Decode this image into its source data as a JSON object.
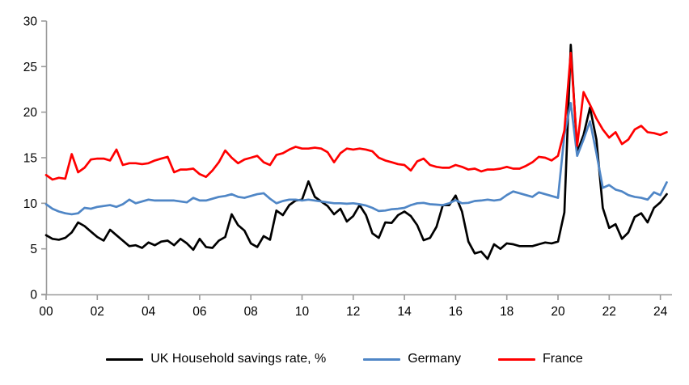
{
  "chart_data": {
    "type": "line",
    "title": "",
    "x_start": 2000,
    "x_step_years": 0.25,
    "x_tick_labels": [
      "00",
      "02",
      "04",
      "06",
      "08",
      "10",
      "12",
      "14",
      "16",
      "18",
      "20",
      "22",
      "24"
    ],
    "x_tick_interval_years": 2,
    "y_ticks": [
      0,
      5,
      10,
      15,
      20,
      25,
      30
    ],
    "ylim": [
      0,
      30
    ],
    "xlim": [
      2000,
      2024.3
    ],
    "grid": false,
    "legend_position": "bottom",
    "axis_color": "#9b9b9b",
    "series": [
      {
        "name": "UK Household savings rate, %",
        "color": "#000000",
        "values": [
          6.5,
          6.1,
          6.0,
          6.2,
          6.8,
          7.9,
          7.5,
          6.9,
          6.3,
          5.9,
          7.1,
          6.5,
          5.9,
          5.3,
          5.4,
          5.1,
          5.7,
          5.4,
          5.8,
          5.9,
          5.4,
          6.1,
          5.6,
          4.9,
          6.1,
          5.2,
          5.1,
          5.9,
          6.3,
          8.8,
          7.6,
          7.0,
          5.6,
          5.2,
          6.4,
          6.0,
          9.2,
          8.7,
          9.8,
          10.3,
          10.4,
          12.4,
          10.7,
          10.2,
          9.7,
          8.8,
          9.4,
          8.0,
          8.6,
          9.8,
          8.7,
          6.7,
          6.2,
          7.9,
          7.85,
          8.7,
          9.1,
          8.6,
          7.6,
          5.95,
          6.2,
          7.4,
          9.8,
          9.8,
          10.85,
          9.1,
          5.8,
          4.5,
          4.7,
          3.9,
          5.5,
          5.0,
          5.6,
          5.5,
          5.3,
          5.3,
          5.3,
          5.5,
          5.7,
          5.6,
          5.8,
          9.0,
          27.4,
          15.6,
          17.5,
          20.5,
          17.0,
          9.5,
          7.3,
          7.7,
          6.1,
          6.8,
          8.5,
          8.9,
          7.9,
          9.5,
          10.1,
          11.0
        ]
      },
      {
        "name": "Germany",
        "color": "#4f86c6",
        "values": [
          9.9,
          9.4,
          9.1,
          8.9,
          8.8,
          8.9,
          9.5,
          9.4,
          9.6,
          9.7,
          9.8,
          9.6,
          9.9,
          10.4,
          10.0,
          10.2,
          10.4,
          10.3,
          10.3,
          10.3,
          10.3,
          10.2,
          10.1,
          10.6,
          10.3,
          10.3,
          10.5,
          10.7,
          10.8,
          11.0,
          10.7,
          10.6,
          10.8,
          11.0,
          11.1,
          10.5,
          10.0,
          10.25,
          10.4,
          10.4,
          10.3,
          10.4,
          10.3,
          10.2,
          10.1,
          10.0,
          10.0,
          9.95,
          10.0,
          9.9,
          9.75,
          9.5,
          9.15,
          9.2,
          9.35,
          9.4,
          9.5,
          9.8,
          10.0,
          10.05,
          9.9,
          9.85,
          9.8,
          10.0,
          10.35,
          10.0,
          10.05,
          10.25,
          10.3,
          10.4,
          10.3,
          10.4,
          10.9,
          11.3,
          11.1,
          10.9,
          10.7,
          11.2,
          11.0,
          10.8,
          10.6,
          17.5,
          21.0,
          15.2,
          17.0,
          19.0,
          15.5,
          11.7,
          12.0,
          11.5,
          11.3,
          10.9,
          10.7,
          10.6,
          10.4,
          11.2,
          10.9,
          12.3
        ]
      },
      {
        "name": "France",
        "color": "#ff0000",
        "values": [
          13.1,
          12.6,
          12.8,
          12.7,
          15.4,
          13.4,
          13.9,
          14.8,
          14.9,
          14.9,
          14.7,
          15.9,
          14.2,
          14.4,
          14.4,
          14.3,
          14.4,
          14.7,
          14.9,
          15.1,
          13.4,
          13.7,
          13.7,
          13.8,
          13.2,
          12.9,
          13.6,
          14.5,
          15.8,
          15.0,
          14.4,
          14.8,
          15.0,
          15.2,
          14.5,
          14.2,
          15.3,
          15.5,
          15.9,
          16.2,
          16.0,
          16.0,
          16.1,
          16.0,
          15.6,
          14.5,
          15.5,
          16.0,
          15.9,
          16.0,
          15.9,
          15.7,
          15.0,
          14.7,
          14.5,
          14.3,
          14.2,
          13.6,
          14.6,
          14.9,
          14.2,
          14.0,
          13.9,
          13.9,
          14.2,
          14.0,
          13.7,
          13.8,
          13.5,
          13.7,
          13.7,
          13.8,
          14.0,
          13.8,
          13.8,
          14.1,
          14.5,
          15.1,
          15.0,
          14.7,
          15.2,
          18.0,
          26.5,
          16.3,
          22.2,
          20.8,
          19.3,
          18.1,
          17.2,
          17.8,
          16.5,
          17.0,
          18.1,
          18.5,
          17.8,
          17.7,
          17.5,
          17.8
        ]
      }
    ]
  }
}
